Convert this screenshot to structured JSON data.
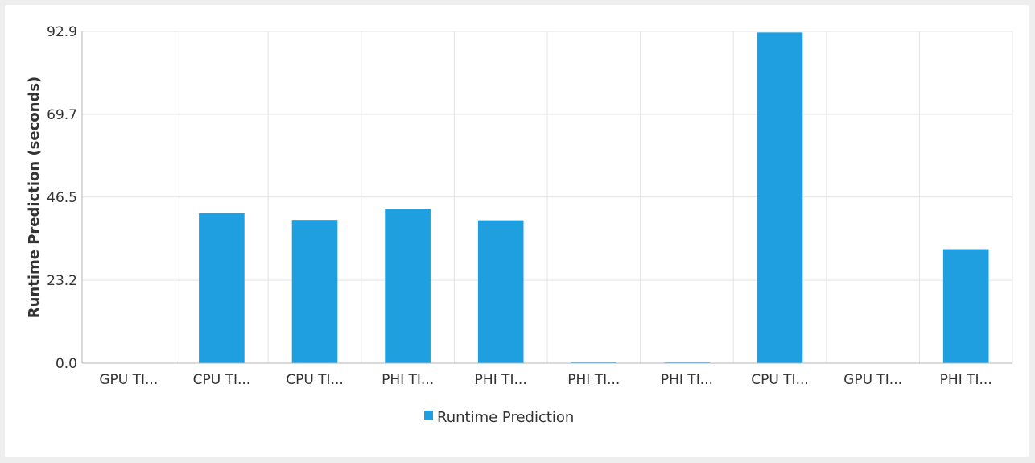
{
  "chart_data": {
    "type": "bar",
    "categories": [
      "GPU TI...",
      "CPU TI...",
      "CPU TI...",
      "PHI TI...",
      "PHI TI...",
      "PHI TI...",
      "PHI TI...",
      "CPU TI...",
      "GPU TI...",
      "PHI TI..."
    ],
    "series": [
      {
        "name": "Runtime Prediction",
        "color": "#1f9fdf",
        "values": [
          0.0,
          42.0,
          40.1,
          43.2,
          40.0,
          0.2,
          0.2,
          92.6,
          0.0,
          31.9
        ]
      }
    ],
    "ylabel": "Runtime Prediction (seconds)",
    "xlabel": "",
    "yticks": [
      "0.0",
      "23.2",
      "46.5",
      "69.7",
      "92.9"
    ],
    "ylim": [
      0,
      92.9
    ],
    "grid": true,
    "legend_position": "bottom-center"
  }
}
